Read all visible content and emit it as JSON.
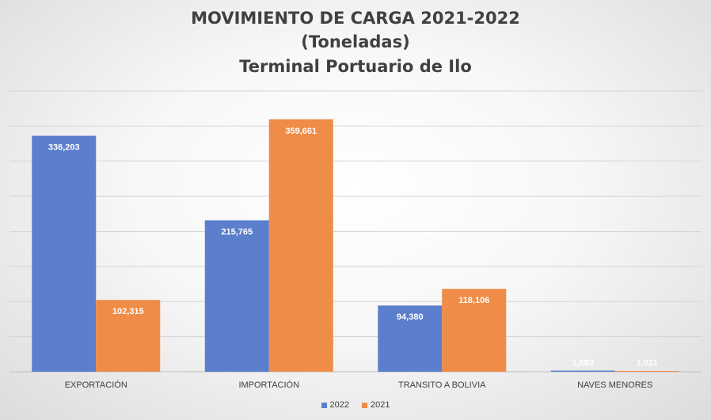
{
  "chart_data": {
    "type": "bar",
    "title": "MOVIMIENTO DE CARGA 2021-2022",
    "subtitle": "(Toneladas)",
    "subtitle2": "Terminal Portuario de Ilo",
    "categories": [
      "EXPORTACIÓN",
      "IMPORTACIÓN",
      "TRANSITO A BOLIVIA",
      "NAVES MENORES"
    ],
    "series": [
      {
        "name": "2022",
        "color": "#5b7fcc",
        "values": [
          336203,
          215765,
          94380,
          1683
        ],
        "labels": [
          "336,203",
          "215,765",
          "94,380",
          "1,683"
        ]
      },
      {
        "name": "2021",
        "color": "#ef8c47",
        "values": [
          102315,
          359661,
          118106,
          1021
        ],
        "labels": [
          "102,315",
          "359,661",
          "118,106",
          "1,021"
        ]
      }
    ],
    "ylim": [
      0,
      400000
    ],
    "grid": true,
    "legend_position": "bottom"
  }
}
